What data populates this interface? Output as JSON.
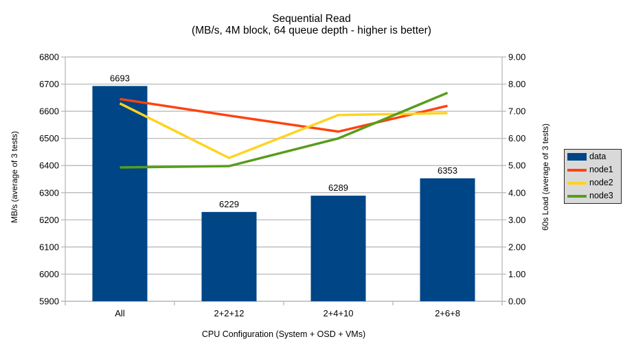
{
  "title": "Sequential Read",
  "subtitle": "(MB/s, 4M block, 64 queue depth - higher is better)",
  "chart_data": {
    "type": "bar+line",
    "title": "Sequential Read",
    "subtitle": "(MB/s, 4M block, 64 queue depth - higher is better)",
    "xlabel": "CPU Configuration (System + OSD + VMs)",
    "ylabel_left": "MB/s (average of 3 tests)",
    "ylabel_right": "60s Load (average of 3 tests)",
    "categories": [
      "All",
      "2+2+12",
      "2+4+10",
      "2+6+8"
    ],
    "bar_series": {
      "name": "data",
      "axis": "left",
      "color": "#004586",
      "values": [
        6693,
        6229,
        6289,
        6353
      ],
      "data_labels": [
        "6693",
        "6229",
        "6289",
        "6353"
      ]
    },
    "line_series": [
      {
        "name": "node1",
        "axis": "right",
        "color": "#ff420e",
        "values": [
          7.45,
          6.84,
          6.25,
          7.2
        ]
      },
      {
        "name": "node2",
        "axis": "right",
        "color": "#ffd320",
        "values": [
          7.29,
          5.28,
          6.86,
          6.93
        ]
      },
      {
        "name": "node3",
        "axis": "right",
        "color": "#579d1c",
        "values": [
          4.93,
          4.98,
          6.0,
          7.68
        ]
      }
    ],
    "y_left_axis": {
      "min": 5900,
      "max": 6800,
      "step": 100,
      "tick_format": "integer"
    },
    "y_right_axis": {
      "min": 0,
      "max": 9,
      "step": 1,
      "tick_format": "2dp"
    },
    "grid": true,
    "grid_color": "#b3b3b3",
    "axis_color": "#b3b3b3",
    "legend_position": "right",
    "legend_background": "#d9d9d9"
  }
}
